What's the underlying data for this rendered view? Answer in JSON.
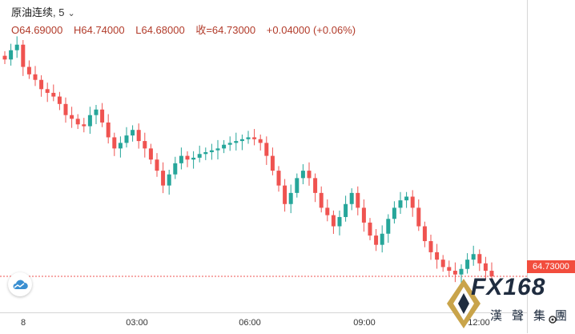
{
  "legend": {
    "symbol": "原油连续",
    "interval": ", 5",
    "open": "64.69000",
    "high": "64.74000",
    "low": "64.68000",
    "close": "64.73000",
    "change": "+0.04000 (+0.06%)",
    "open_key": "O",
    "high_key": "H",
    "low_key": "L",
    "close_key": "收="
  },
  "price_tag": "64.73000",
  "time_axis": [
    "8",
    "03:00",
    "06:00",
    "09:00",
    "12:00"
  ],
  "logo": {
    "text": "FX168",
    "subtitle": "漢聲集團"
  },
  "colors": {
    "up": "#26a69a",
    "down": "#ef5350",
    "price_line": "#ef5350"
  },
  "chart_data": {
    "type": "candlestick",
    "ylim": [
      64.73,
      66.1
    ],
    "x_ticks": [
      "8",
      "03:00",
      "06:00",
      "09:00",
      "12:00"
    ],
    "last_price": 64.73,
    "series": [
      {
        "values": [
          65.9,
          65.95,
          65.98,
          65.86,
          65.82,
          65.79,
          65.74,
          65.72,
          65.7,
          65.66,
          65.6,
          65.58,
          65.55,
          65.54,
          65.6,
          65.63,
          65.56,
          65.48,
          65.42,
          65.45,
          65.49,
          65.52,
          65.46,
          65.42,
          65.36,
          65.3,
          65.22,
          65.28,
          65.34,
          65.38,
          65.36,
          65.37,
          65.39,
          65.4,
          65.41,
          65.42,
          65.44,
          65.45,
          65.46,
          65.47,
          65.48,
          65.47,
          65.45,
          65.38,
          65.3,
          65.22,
          65.12,
          65.18,
          65.26,
          65.3,
          65.26,
          65.18,
          65.1,
          65.06,
          65.0,
          65.05,
          65.12,
          65.18,
          65.1,
          65.02,
          64.95,
          64.9,
          64.96,
          65.04,
          65.1,
          65.14,
          65.16,
          65.1,
          65.0,
          64.92,
          64.86,
          64.82,
          64.78,
          64.76,
          64.74,
          64.77,
          64.82,
          64.85,
          64.8,
          64.76,
          64.73
        ]
      }
    ]
  }
}
